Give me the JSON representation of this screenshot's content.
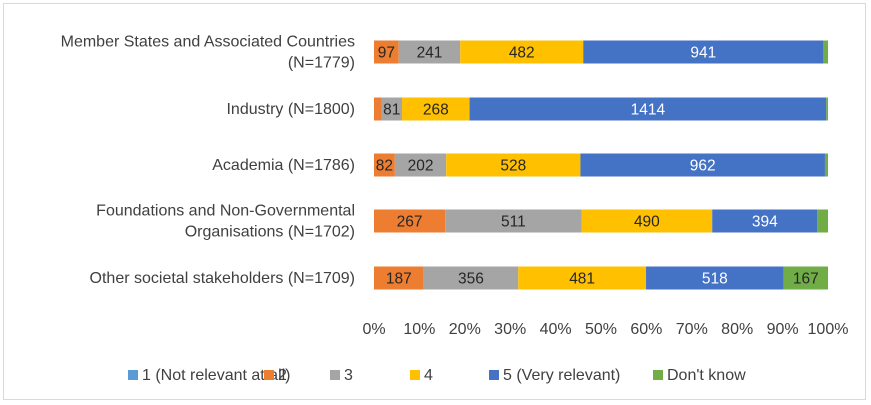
{
  "chart_data": {
    "type": "bar",
    "orientation": "horizontal",
    "stacked": "percent",
    "categories": [
      [
        "Member States and Associated Countries",
        "(N=1779)"
      ],
      [
        "Industry (N=1800)"
      ],
      [
        "Academia (N=1786)"
      ],
      [
        "Foundations and Non-Governmental",
        "Organisations (N=1702)"
      ],
      [
        "Other societal stakeholders (N=1709)"
      ]
    ],
    "series": [
      {
        "name": "1 (Not relevant at all)",
        "color": "#5b9bd5",
        "values": [
          0,
          0,
          0,
          0,
          0
        ],
        "labels": [
          "",
          "",
          "",
          "",
          ""
        ]
      },
      {
        "name": "2",
        "color": "#ed7d31",
        "values": [
          97,
          30,
          82,
          267,
          187
        ],
        "labels": [
          "97",
          "",
          "82",
          "267",
          "187"
        ]
      },
      {
        "name": "3",
        "color": "#a5a5a5",
        "values": [
          241,
          81,
          202,
          511,
          356
        ],
        "labels": [
          "241",
          "81",
          "202",
          "511",
          "356"
        ]
      },
      {
        "name": "4",
        "color": "#ffc000",
        "values": [
          482,
          268,
          528,
          490,
          481
        ],
        "labels": [
          "482",
          "268",
          "528",
          "490",
          "481"
        ]
      },
      {
        "name": "5 (Very relevant)",
        "color": "#4472c4",
        "values": [
          941,
          1414,
          962,
          394,
          518
        ],
        "labels": [
          "941",
          "1414",
          "962",
          "394",
          "518"
        ]
      },
      {
        "name": "Don't know",
        "color": "#70ad47",
        "values": [
          18,
          7,
          12,
          40,
          167
        ],
        "labels": [
          "",
          "",
          "",
          "",
          "167"
        ]
      }
    ],
    "x_ticks": [
      "0%",
      "10%",
      "20%",
      "30%",
      "40%",
      "50%",
      "60%",
      "70%",
      "80%",
      "90%",
      "100%"
    ],
    "xlim": [
      0,
      100
    ],
    "grid": false,
    "legend_position": "bottom"
  }
}
